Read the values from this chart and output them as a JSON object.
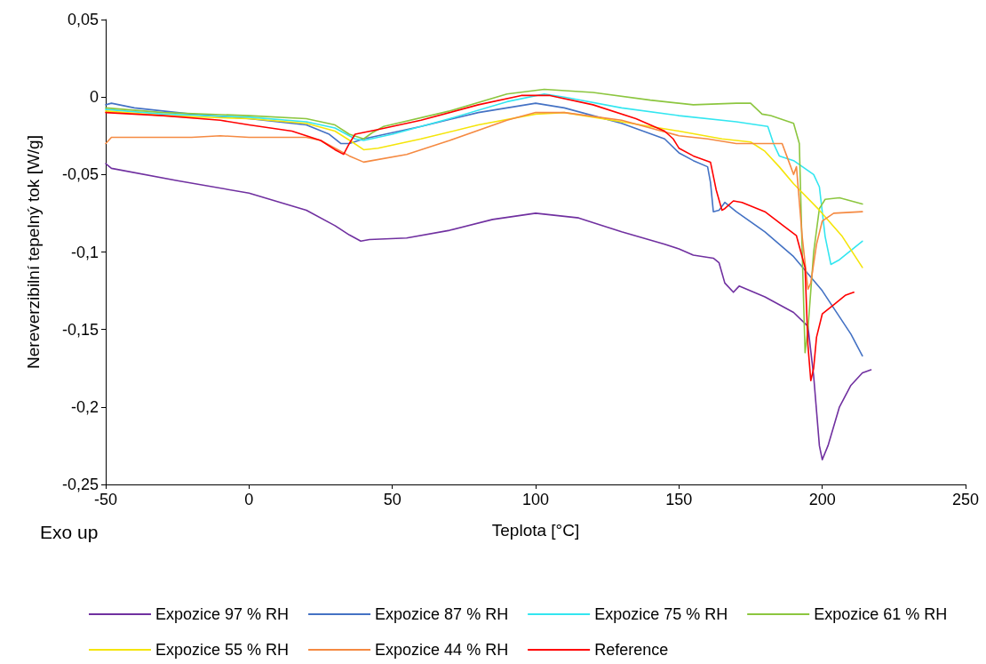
{
  "chart_data": {
    "type": "line",
    "xlabel": "Teplota [°C]",
    "ylabel": "Nereverzibilní tepelný tok [W/g]",
    "annotations": [
      "Exo up"
    ],
    "xlim": [
      -50,
      250
    ],
    "xticks": [
      -50,
      0,
      50,
      100,
      150,
      200,
      250
    ],
    "ylim": [
      -0.25,
      0.05
    ],
    "yticks": [
      {
        "value": -0.25,
        "label": "-0,25"
      },
      {
        "value": -0.2,
        "label": "-0,2"
      },
      {
        "value": -0.15,
        "label": "-0,15"
      },
      {
        "value": -0.1,
        "label": "-0,1"
      },
      {
        "value": -0.05,
        "label": "-0,05"
      },
      {
        "value": 0,
        "label": "0"
      },
      {
        "value": 0.05,
        "label": "0,05"
      }
    ],
    "grid": false,
    "legend": "bottom",
    "marker": "none",
    "line_style": "solid",
    "series": [
      {
        "name": "Expozice 97 % RH",
        "color": "#7030a0",
        "x": [
          -50,
          -48,
          -25,
          0,
          20,
          30,
          35,
          39,
          42,
          55,
          70,
          85,
          100,
          115,
          130,
          145,
          150,
          155,
          162,
          164,
          166,
          169,
          171,
          180,
          190,
          195,
          197,
          199,
          200,
          202,
          206,
          210,
          214,
          217
        ],
        "values": [
          -0.043,
          -0.046,
          -0.054,
          -0.062,
          -0.073,
          -0.083,
          -0.089,
          -0.093,
          -0.092,
          -0.091,
          -0.086,
          -0.079,
          -0.075,
          -0.078,
          -0.087,
          -0.095,
          -0.098,
          -0.102,
          -0.104,
          -0.107,
          -0.12,
          -0.126,
          -0.122,
          -0.129,
          -0.139,
          -0.148,
          -0.18,
          -0.225,
          -0.234,
          -0.225,
          -0.2,
          -0.186,
          -0.178,
          -0.176
        ]
      },
      {
        "name": "Expozice 87 % RH",
        "color": "#4472c4",
        "x": [
          -50,
          -48,
          -40,
          -20,
          0,
          20,
          28,
          32,
          35,
          40,
          60,
          80,
          100,
          110,
          130,
          145,
          150,
          155,
          160,
          161,
          162,
          164,
          166,
          170,
          180,
          190,
          200,
          210,
          214
        ],
        "values": [
          -0.005,
          -0.004,
          -0.007,
          -0.011,
          -0.014,
          -0.018,
          -0.024,
          -0.03,
          -0.03,
          -0.027,
          -0.019,
          -0.01,
          -0.004,
          -0.007,
          -0.017,
          -0.027,
          -0.036,
          -0.041,
          -0.045,
          -0.055,
          -0.074,
          -0.073,
          -0.068,
          -0.074,
          -0.087,
          -0.103,
          -0.125,
          -0.153,
          -0.167
        ]
      },
      {
        "name": "Expozice 75 % RH",
        "color": "#33e6f0",
        "x": [
          -50,
          -30,
          0,
          20,
          30,
          37,
          40,
          50,
          70,
          90,
          103,
          110,
          130,
          150,
          170,
          181,
          183,
          185,
          190,
          197,
          199,
          201,
          203,
          206,
          214
        ],
        "values": [
          -0.008,
          -0.011,
          -0.013,
          -0.016,
          -0.02,
          -0.027,
          -0.028,
          -0.024,
          -0.014,
          -0.003,
          0.002,
          0,
          -0.007,
          -0.012,
          -0.016,
          -0.019,
          -0.03,
          -0.038,
          -0.041,
          -0.05,
          -0.058,
          -0.09,
          -0.108,
          -0.105,
          -0.093
        ]
      },
      {
        "name": "Expozice 61 % RH",
        "color": "#8cc63f",
        "x": [
          -50,
          -30,
          0,
          20,
          30,
          35,
          40,
          43,
          47,
          70,
          90,
          103,
          120,
          140,
          155,
          170,
          175,
          179,
          182,
          190,
          192,
          193,
          194,
          195,
          197,
          199,
          201,
          206,
          214
        ],
        "values": [
          -0.007,
          -0.01,
          -0.012,
          -0.014,
          -0.018,
          -0.024,
          -0.027,
          -0.023,
          -0.019,
          -0.009,
          0.002,
          0.005,
          0.003,
          -0.002,
          -0.005,
          -0.004,
          -0.004,
          -0.011,
          -0.012,
          -0.017,
          -0.03,
          -0.1,
          -0.165,
          -0.15,
          -0.1,
          -0.072,
          -0.066,
          -0.065,
          -0.069
        ]
      },
      {
        "name": "Expozice 55 % RH",
        "color": "#f5e50a",
        "x": [
          -50,
          -30,
          0,
          20,
          30,
          36,
          40,
          45,
          60,
          80,
          100,
          110,
          130,
          150,
          165,
          175,
          180,
          185,
          190,
          199,
          207,
          214
        ],
        "values": [
          -0.009,
          -0.012,
          -0.014,
          -0.017,
          -0.022,
          -0.029,
          -0.034,
          -0.033,
          -0.027,
          -0.018,
          -0.011,
          -0.01,
          -0.016,
          -0.022,
          -0.027,
          -0.029,
          -0.035,
          -0.045,
          -0.056,
          -0.073,
          -0.09,
          -0.11
        ]
      },
      {
        "name": "Expozice 44 % RH",
        "color": "#f58a42",
        "x": [
          -50,
          -48,
          -20,
          -10,
          0,
          20,
          25,
          30,
          35,
          40,
          43,
          55,
          70,
          90,
          100,
          110,
          130,
          150,
          160,
          170,
          186,
          188,
          190,
          191,
          193,
          195,
          196,
          198,
          200,
          204,
          214
        ],
        "values": [
          -0.03,
          -0.026,
          -0.026,
          -0.025,
          -0.026,
          -0.026,
          -0.028,
          -0.033,
          -0.038,
          -0.042,
          -0.041,
          -0.037,
          -0.028,
          -0.015,
          -0.01,
          -0.01,
          -0.015,
          -0.025,
          -0.027,
          -0.03,
          -0.03,
          -0.04,
          -0.05,
          -0.045,
          -0.09,
          -0.124,
          -0.12,
          -0.095,
          -0.08,
          -0.075,
          -0.074
        ]
      },
      {
        "name": "Reference",
        "color": "#ff0000",
        "x": [
          -50,
          -30,
          -10,
          0,
          15,
          25,
          30,
          33,
          35,
          37,
          45,
          60,
          80,
          95,
          105,
          120,
          135,
          145,
          148,
          150,
          155,
          161,
          163,
          165,
          166,
          169,
          172,
          180,
          191,
          194,
          195,
          196,
          197,
          198,
          200,
          204,
          208,
          211
        ],
        "values": [
          -0.01,
          -0.012,
          -0.015,
          -0.018,
          -0.022,
          -0.028,
          -0.034,
          -0.037,
          -0.03,
          -0.024,
          -0.021,
          -0.015,
          -0.005,
          0.001,
          0.001,
          -0.005,
          -0.014,
          -0.022,
          -0.027,
          -0.033,
          -0.038,
          -0.042,
          -0.06,
          -0.073,
          -0.072,
          -0.067,
          -0.068,
          -0.074,
          -0.0895,
          -0.11,
          -0.16,
          -0.183,
          -0.175,
          -0.155,
          -0.14,
          -0.134,
          -0.128,
          -0.126
        ]
      }
    ]
  }
}
